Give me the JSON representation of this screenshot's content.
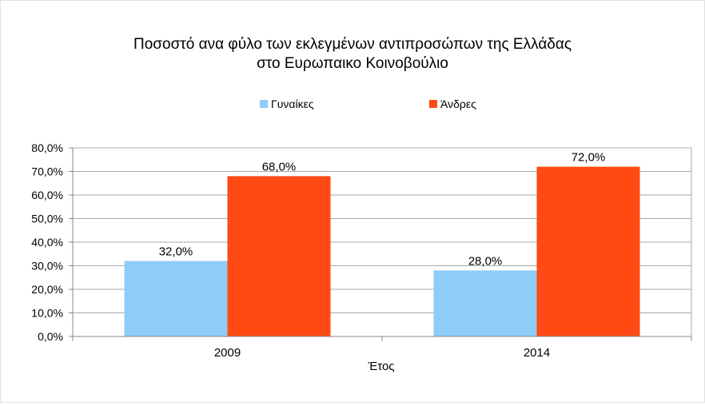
{
  "chart_data": {
    "type": "bar",
    "title_line1": "Ποσοστό ανα φύλο των εκλεγμένων αντιπροσώπων της Ελλάδας",
    "title_line2": "στο Ευρωπαικο Κοινοβούλιο",
    "xlabel": "Έτος",
    "ylabel": "",
    "categories": [
      "2009",
      "2014"
    ],
    "series": [
      {
        "name": "Γυναίκες",
        "values": [
          32.0,
          28.0
        ],
        "color": "#8ecdf8",
        "labels": [
          "32,0%",
          "28,0%"
        ]
      },
      {
        "name": "Άνδρες",
        "values": [
          68.0,
          72.0
        ],
        "color": "#ff4a14",
        "labels": [
          "68,0%",
          "72,0%"
        ]
      }
    ],
    "ylim": [
      0,
      80
    ],
    "yticks": [
      0,
      10,
      20,
      30,
      40,
      50,
      60,
      70,
      80
    ],
    "ytick_labels": [
      "0,0%",
      "10,0%",
      "20,0%",
      "30,0%",
      "40,0%",
      "50,0%",
      "60,0%",
      "70,0%",
      "80,0%"
    ],
    "grid": true,
    "legend_position": "top"
  }
}
